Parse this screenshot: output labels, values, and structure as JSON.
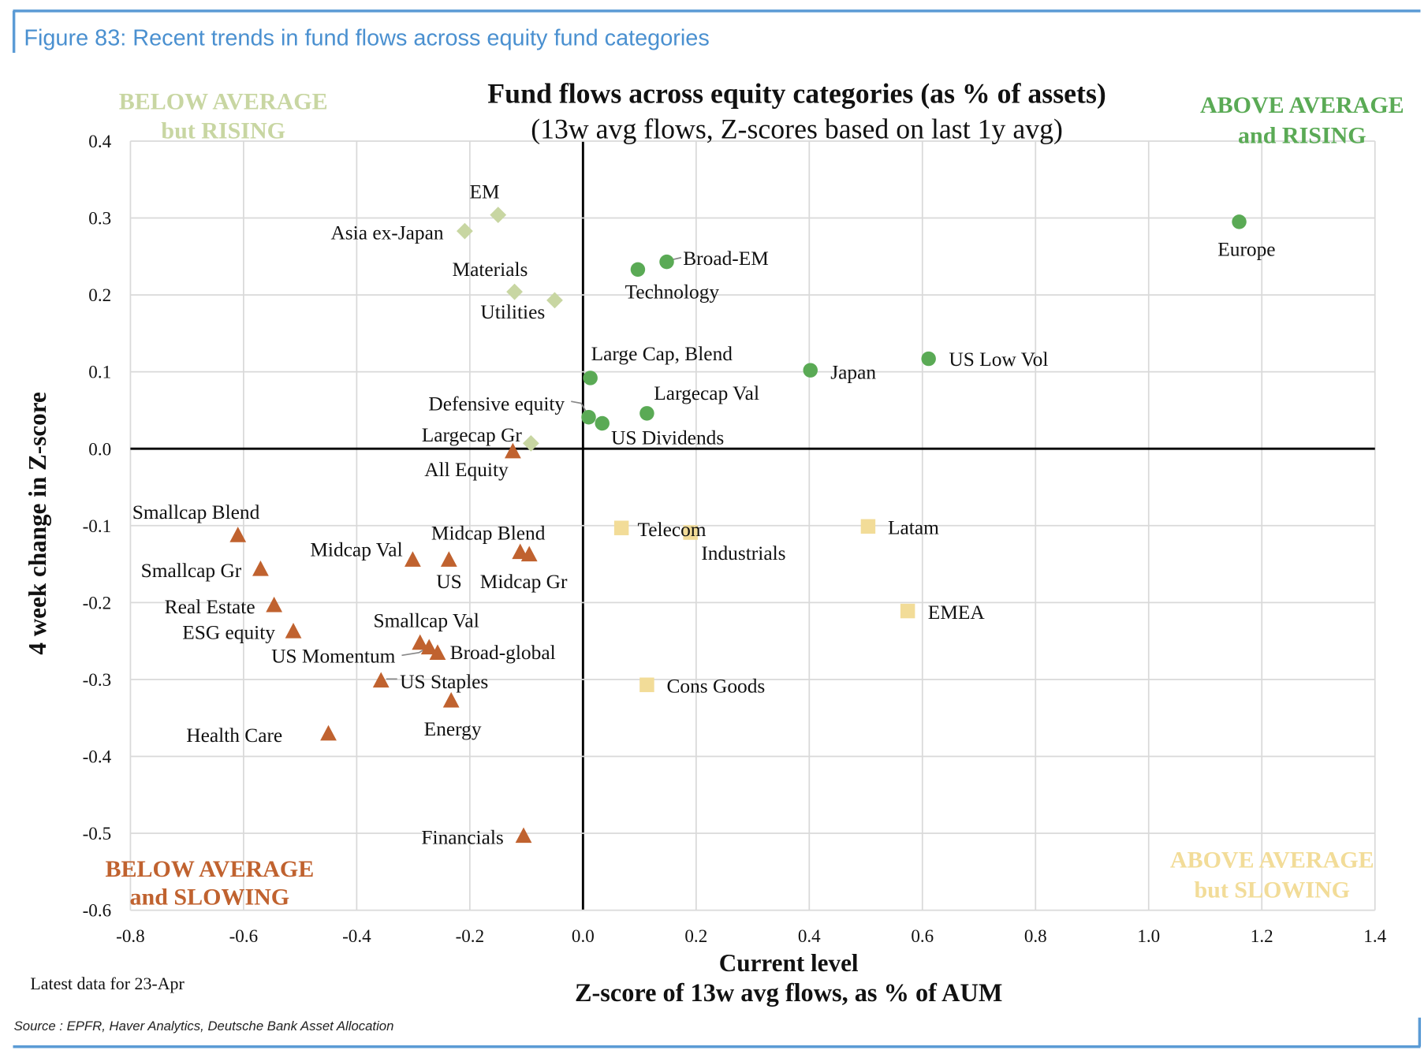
{
  "figure_caption": "Figure 83: Recent trends in fund flows across equity fund categories",
  "note": "Latest data for 23-Apr",
  "source": "Source : EPFR, Haver Analytics, Deutsche Bank Asset Allocation",
  "quadrants": {
    "top_left": [
      "BELOW AVERAGE",
      "but RISING"
    ],
    "top_right": [
      "ABOVE AVERAGE",
      "and RISING"
    ],
    "bottom_left": [
      "BELOW AVERAGE",
      "and SLOWING"
    ],
    "bottom_right": [
      "ABOVE AVERAGE",
      "but SLOWING"
    ]
  },
  "colors": {
    "caption": "#4a90d0",
    "above_rising": "#5aaa55",
    "below_rising": "#c8d6a2",
    "below_slowing": "#c0622f",
    "above_slowing": "#f2dc98"
  },
  "chart_data": {
    "type": "scatter",
    "title": "Fund flows across equity categories (as % of assets)",
    "subtitle": "(13w avg flows, Z-scores based on last 1y avg)",
    "xlabel": "Current level",
    "xlabel2": "Z-score of 13w avg flows, as % of AUM",
    "ylabel": "4 week change in Z-score",
    "xlim": [
      -0.8,
      1.4
    ],
    "ylim": [
      -0.6,
      0.4
    ],
    "x_ticks": [
      "-0.8",
      "-0.6",
      "-0.4",
      "-0.2",
      "0.0",
      "0.2",
      "0.4",
      "0.6",
      "0.8",
      "1.0",
      "1.2",
      "1.4"
    ],
    "y_ticks": [
      "0.4",
      "0.3",
      "0.2",
      "0.1",
      "0.0",
      "-0.1",
      "-0.2",
      "-0.3",
      "-0.4",
      "-0.5",
      "-0.6"
    ],
    "grid": true,
    "series": [
      {
        "name": "Above average and rising",
        "marker": "circle",
        "points": [
          {
            "label": "Europe",
            "x": 1.16,
            "y": 0.295
          },
          {
            "label": "Broad-EM",
            "x": 0.148,
            "y": 0.243
          },
          {
            "label": "Technology",
            "x": 0.097,
            "y": 0.233
          },
          {
            "label": "Large Cap, Blend",
            "x": 0.013,
            "y": 0.092
          },
          {
            "label": "Japan",
            "x": 0.402,
            "y": 0.102
          },
          {
            "label": "US Low Vol",
            "x": 0.611,
            "y": 0.117
          },
          {
            "label": "Largecap Val",
            "x": 0.113,
            "y": 0.046
          },
          {
            "label": "Defensive equity",
            "x": 0.01,
            "y": 0.041
          },
          {
            "label": "US Dividends",
            "x": 0.034,
            "y": 0.033
          }
        ]
      },
      {
        "name": "Below average but rising",
        "marker": "diamond",
        "points": [
          {
            "label": "EM",
            "x": -0.15,
            "y": 0.304
          },
          {
            "label": "Asia ex-Japan",
            "x": -0.209,
            "y": 0.283
          },
          {
            "label": "Materials",
            "x": -0.121,
            "y": 0.204
          },
          {
            "label": "Utilities",
            "x": -0.05,
            "y": 0.193
          },
          {
            "label": "Largecap Gr",
            "x": -0.092,
            "y": 0.007
          }
        ]
      },
      {
        "name": "Below average and slowing",
        "marker": "triangle",
        "points": [
          {
            "label": "All Equity",
            "x": -0.124,
            "y": -0.003
          },
          {
            "label": "Smallcap Blend",
            "x": -0.61,
            "y": -0.112
          },
          {
            "label": "Smallcap Gr",
            "x": -0.57,
            "y": -0.156
          },
          {
            "label": "Midcap Val",
            "x": -0.301,
            "y": -0.144
          },
          {
            "label": "US",
            "x": -0.237,
            "y": -0.144
          },
          {
            "label": "Midcap Blend",
            "x": -0.111,
            "y": -0.134
          },
          {
            "label": "Midcap Gr",
            "x": -0.095,
            "y": -0.137
          },
          {
            "label": "Real Estate",
            "x": -0.546,
            "y": -0.203
          },
          {
            "label": "ESG equity",
            "x": -0.512,
            "y": -0.237
          },
          {
            "label": "Smallcap Val",
            "x": -0.288,
            "y": -0.252
          },
          {
            "label": "US Momentum",
            "x": -0.272,
            "y": -0.258
          },
          {
            "label": "Broad-global",
            "x": -0.257,
            "y": -0.265
          },
          {
            "label": "US Staples",
            "x": -0.357,
            "y": -0.301
          },
          {
            "label": "Energy",
            "x": -0.233,
            "y": -0.327
          },
          {
            "label": "Health Care",
            "x": -0.45,
            "y": -0.37
          },
          {
            "label": "Financials",
            "x": -0.105,
            "y": -0.503
          }
        ]
      },
      {
        "name": "Above average but slowing",
        "marker": "square",
        "points": [
          {
            "label": "Telecom",
            "x": 0.068,
            "y": -0.103
          },
          {
            "label": "Industrials",
            "x": 0.19,
            "y": -0.109
          },
          {
            "label": "Latam",
            "x": 0.504,
            "y": -0.101
          },
          {
            "label": "EMEA",
            "x": 0.574,
            "y": -0.211
          },
          {
            "label": "Cons Goods",
            "x": 0.113,
            "y": -0.307
          }
        ]
      }
    ]
  }
}
